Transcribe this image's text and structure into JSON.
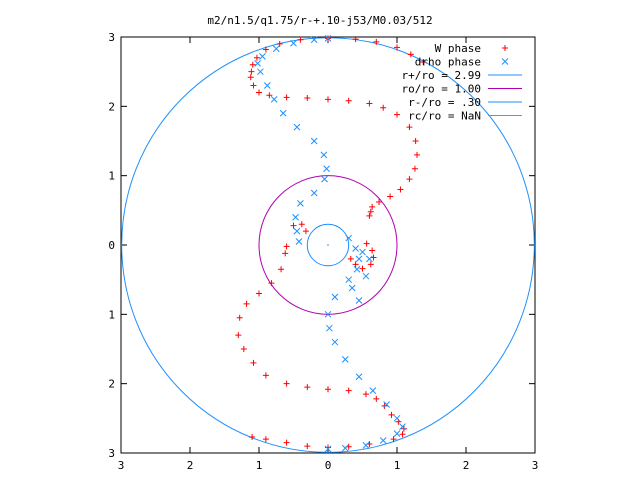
{
  "chart_data": {
    "type": "scatter",
    "title": "m2/n1.5/q1.75/r-+.10-j53/M0.03/512",
    "xlabel": "",
    "ylabel": "",
    "xlim": [
      -3,
      3
    ],
    "ylim": [
      -3,
      3
    ],
    "x_ticks": [
      -3,
      -2,
      -1,
      0,
      1,
      2,
      3
    ],
    "y_ticks": [
      -3,
      -2,
      -1,
      0,
      1,
      2,
      3
    ],
    "x_tick_labels": [
      "3",
      "2",
      "1",
      "0",
      "1",
      "2",
      "3"
    ],
    "y_tick_labels": [
      "3",
      "2",
      "1",
      "0",
      "1",
      "2",
      "3"
    ],
    "grid": false,
    "legend_position": "top-right",
    "series": [
      {
        "name": "W phase",
        "marker": "+",
        "color": "#ff0000",
        "points": [
          [
            0.62,
            0.48
          ],
          [
            0.6,
            0.42
          ],
          [
            0.64,
            0.55
          ],
          [
            0.74,
            0.62
          ],
          [
            0.9,
            0.7
          ],
          [
            1.05,
            0.8
          ],
          [
            1.18,
            0.95
          ],
          [
            1.26,
            1.1
          ],
          [
            1.29,
            1.3
          ],
          [
            1.27,
            1.5
          ],
          [
            1.18,
            1.7
          ],
          [
            1.0,
            1.88
          ],
          [
            0.8,
            1.98
          ],
          [
            0.6,
            2.04
          ],
          [
            0.3,
            2.08
          ],
          [
            0.0,
            2.1
          ],
          [
            -0.3,
            2.12
          ],
          [
            -0.6,
            2.13
          ],
          [
            -0.85,
            2.16
          ],
          [
            -1.0,
            2.2
          ],
          [
            -1.08,
            2.3
          ],
          [
            -1.12,
            2.42
          ],
          [
            -1.11,
            2.5
          ],
          [
            -1.09,
            2.6
          ],
          [
            -1.03,
            2.7
          ],
          [
            -0.9,
            2.82
          ],
          [
            -0.7,
            2.9
          ],
          [
            -0.4,
            2.96
          ],
          [
            0.0,
            2.98
          ],
          [
            0.4,
            2.97
          ],
          [
            0.7,
            2.93
          ],
          [
            1.0,
            2.85
          ],
          [
            1.2,
            2.75
          ],
          [
            1.38,
            2.64
          ],
          [
            0.56,
            0.02
          ],
          [
            0.64,
            -0.08
          ],
          [
            0.66,
            -0.18
          ],
          [
            0.62,
            -0.28
          ],
          [
            0.5,
            -0.34
          ],
          [
            0.4,
            -0.28
          ],
          [
            0.33,
            -0.2
          ],
          [
            -0.6,
            -0.02
          ],
          [
            -0.62,
            -0.12
          ],
          [
            -0.68,
            -0.35
          ],
          [
            -0.82,
            -0.55
          ],
          [
            -1.0,
            -0.7
          ],
          [
            -1.18,
            -0.85
          ],
          [
            -1.28,
            -1.05
          ],
          [
            -1.3,
            -1.3
          ],
          [
            -1.22,
            -1.5
          ],
          [
            -1.08,
            -1.7
          ],
          [
            -0.9,
            -1.88
          ],
          [
            -0.6,
            -2.0
          ],
          [
            -0.3,
            -2.05
          ],
          [
            0.0,
            -2.08
          ],
          [
            0.3,
            -2.1
          ],
          [
            0.55,
            -2.15
          ],
          [
            0.7,
            -2.22
          ],
          [
            0.82,
            -2.32
          ],
          [
            0.92,
            -2.45
          ],
          [
            1.02,
            -2.55
          ],
          [
            1.1,
            -2.65
          ],
          [
            1.08,
            -2.73
          ],
          [
            0.95,
            -2.8
          ],
          [
            0.6,
            -2.87
          ],
          [
            0.3,
            -2.91
          ],
          [
            0.0,
            -2.92
          ],
          [
            -0.3,
            -2.9
          ],
          [
            -0.6,
            -2.85
          ],
          [
            -0.9,
            -2.8
          ],
          [
            -1.1,
            -2.77
          ],
          [
            -0.5,
            0.28
          ],
          [
            -0.38,
            0.3
          ],
          [
            -0.32,
            0.2
          ]
        ]
      },
      {
        "name": "drho phase",
        "marker": "x",
        "color": "#1e90ff",
        "points": [
          [
            -0.42,
            0.05
          ],
          [
            -0.45,
            0.2
          ],
          [
            -0.47,
            0.4
          ],
          [
            -0.4,
            0.6
          ],
          [
            -0.2,
            0.75
          ],
          [
            -0.05,
            0.95
          ],
          [
            -0.02,
            1.1
          ],
          [
            -0.06,
            1.3
          ],
          [
            -0.2,
            1.5
          ],
          [
            -0.45,
            1.7
          ],
          [
            -0.65,
            1.9
          ],
          [
            -0.78,
            2.1
          ],
          [
            -0.88,
            2.3
          ],
          [
            -0.98,
            2.5
          ],
          [
            -1.02,
            2.62
          ],
          [
            -0.95,
            2.72
          ],
          [
            -0.75,
            2.83
          ],
          [
            -0.5,
            2.91
          ],
          [
            -0.2,
            2.96
          ],
          [
            0.0,
            2.98
          ],
          [
            0.3,
            0.1
          ],
          [
            0.4,
            -0.05
          ],
          [
            0.45,
            -0.2
          ],
          [
            0.42,
            -0.35
          ],
          [
            0.3,
            -0.5
          ],
          [
            0.1,
            -0.75
          ],
          [
            0.0,
            -1.0
          ],
          [
            0.02,
            -1.2
          ],
          [
            0.1,
            -1.4
          ],
          [
            0.25,
            -1.65
          ],
          [
            0.45,
            -1.9
          ],
          [
            0.65,
            -2.1
          ],
          [
            0.85,
            -2.3
          ],
          [
            1.0,
            -2.5
          ],
          [
            1.08,
            -2.62
          ],
          [
            1.0,
            -2.72
          ],
          [
            0.8,
            -2.82
          ],
          [
            0.55,
            -2.89
          ],
          [
            0.25,
            -2.93
          ],
          [
            0.0,
            -2.94
          ],
          [
            0.5,
            -0.1
          ],
          [
            0.6,
            -0.2
          ],
          [
            0.55,
            -0.45
          ],
          [
            0.35,
            -0.62
          ],
          [
            0.45,
            -0.8
          ]
        ]
      }
    ],
    "circles": [
      {
        "name": "r+/ro = 2.99",
        "radius": 2.99,
        "color": "#1e90ff"
      },
      {
        "name": "ro/ro = 1.00",
        "radius": 1.0,
        "color": "#b000b0"
      },
      {
        "name": "r-/ro = .30",
        "radius": 0.3,
        "color": "#1e90ff"
      },
      {
        "name": "rc/ro = NaN",
        "radius": null,
        "color": "#00bfff"
      }
    ]
  }
}
